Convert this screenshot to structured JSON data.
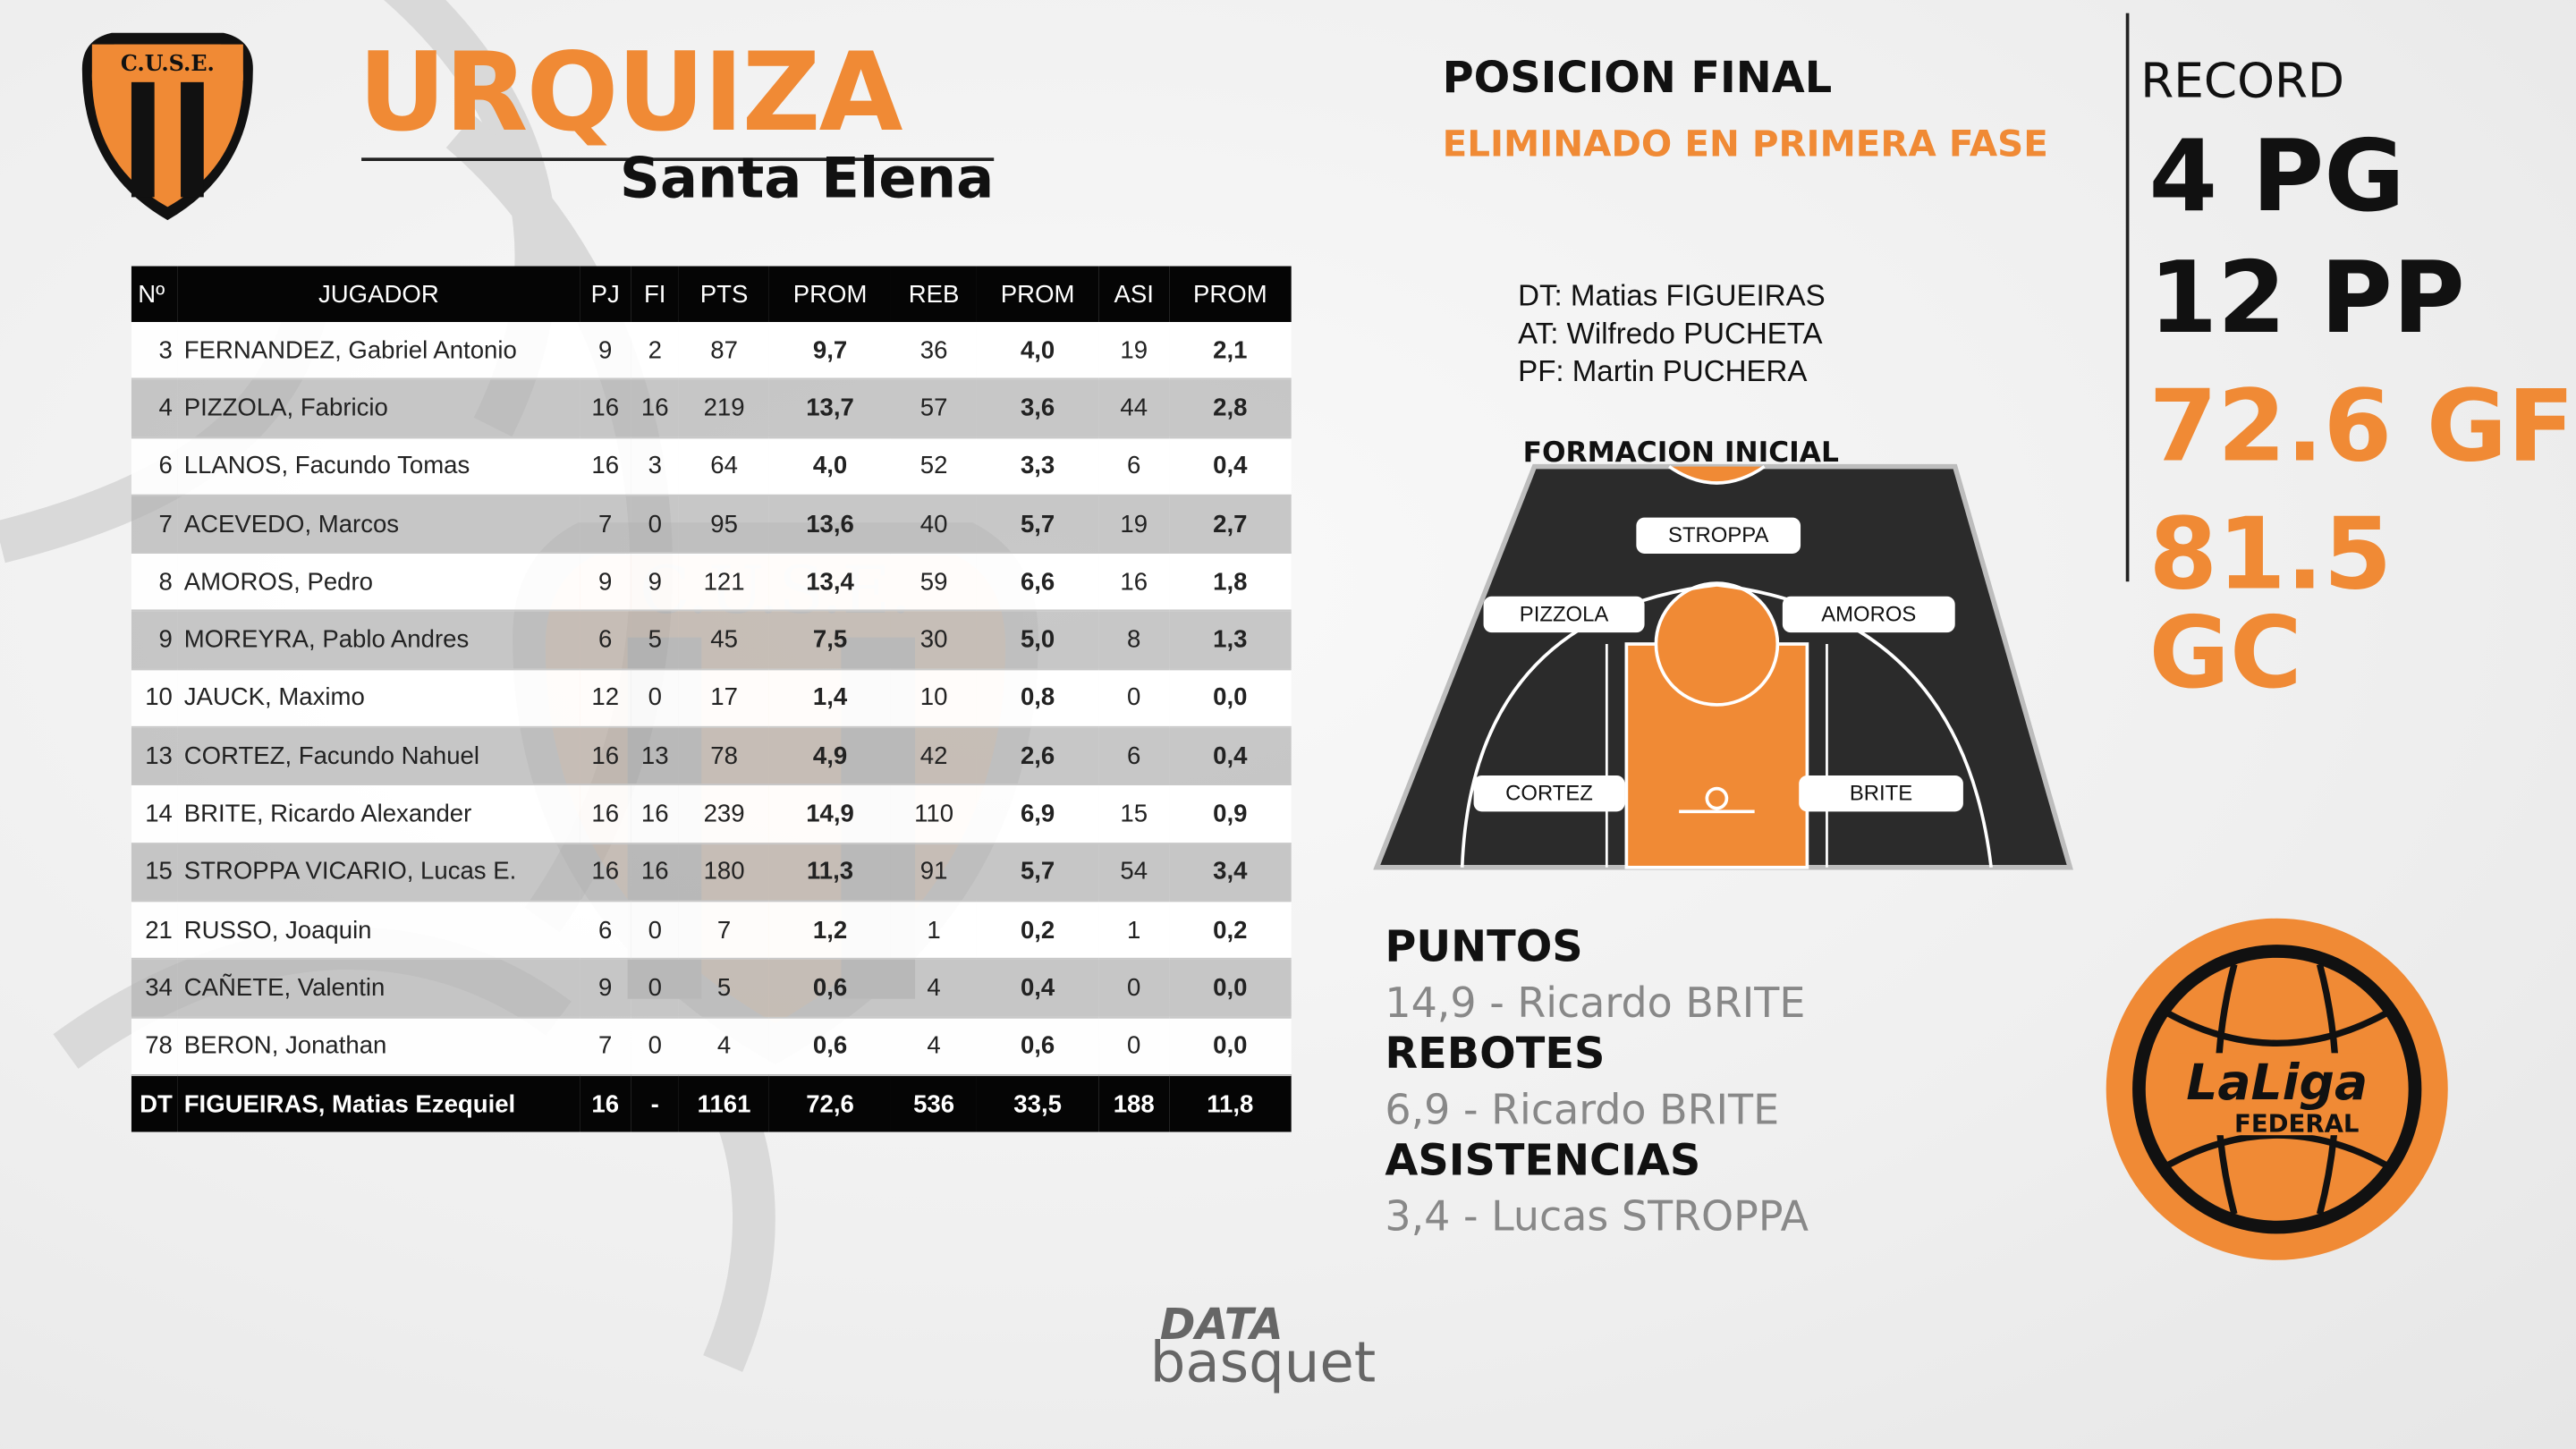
{
  "team": {
    "name": "URQUIZA",
    "city": "Santa Elena",
    "crest_text": "C.U.S.E."
  },
  "table": {
    "headers": [
      "Nº",
      "JUGADOR",
      "PJ",
      "FI",
      "PTS",
      "PROM",
      "REB",
      "PROM",
      "ASI",
      "PROM"
    ],
    "rows": [
      [
        "3",
        "FERNANDEZ, Gabriel Antonio",
        "9",
        "2",
        "87",
        "9,7",
        "36",
        "4,0",
        "19",
        "2,1"
      ],
      [
        "4",
        "PIZZOLA, Fabricio",
        "16",
        "16",
        "219",
        "13,7",
        "57",
        "3,6",
        "44",
        "2,8"
      ],
      [
        "6",
        "LLANOS, Facundo Tomas",
        "16",
        "3",
        "64",
        "4,0",
        "52",
        "3,3",
        "6",
        "0,4"
      ],
      [
        "7",
        "ACEVEDO, Marcos",
        "7",
        "0",
        "95",
        "13,6",
        "40",
        "5,7",
        "19",
        "2,7"
      ],
      [
        "8",
        "AMOROS, Pedro",
        "9",
        "9",
        "121",
        "13,4",
        "59",
        "6,6",
        "16",
        "1,8"
      ],
      [
        "9",
        "MOREYRA, Pablo Andres",
        "6",
        "5",
        "45",
        "7,5",
        "30",
        "5,0",
        "8",
        "1,3"
      ],
      [
        "10",
        "JAUCK, Maximo",
        "12",
        "0",
        "17",
        "1,4",
        "10",
        "0,8",
        "0",
        "0,0"
      ],
      [
        "13",
        "CORTEZ, Facundo Nahuel",
        "16",
        "13",
        "78",
        "4,9",
        "42",
        "2,6",
        "6",
        "0,4"
      ],
      [
        "14",
        "BRITE, Ricardo Alexander",
        "16",
        "16",
        "239",
        "14,9",
        "110",
        "6,9",
        "15",
        "0,9"
      ],
      [
        "15",
        "STROPPA VICARIO, Lucas E.",
        "16",
        "16",
        "180",
        "11,3",
        "91",
        "5,7",
        "54",
        "3,4"
      ],
      [
        "21",
        "RUSSO, Joaquin",
        "6",
        "0",
        "7",
        "1,2",
        "1",
        "0,2",
        "1",
        "0,2"
      ],
      [
        "34",
        "CAÑETE, Valentin",
        "9",
        "0",
        "5",
        "0,6",
        "4",
        "0,4",
        "0",
        "0,0"
      ],
      [
        "78",
        "BERON, Jonathan",
        "7",
        "0",
        "4",
        "0,6",
        "4",
        "0,6",
        "0",
        "0,0"
      ]
    ],
    "total": [
      "DT",
      "FIGUEIRAS, Matias Ezequiel",
      "16",
      "-",
      "1161",
      "72,6",
      "536",
      "33,5",
      "188",
      "11,8"
    ]
  },
  "final_position": {
    "title": "POSICION FINAL",
    "value": "ELIMINADO EN PRIMERA FASE"
  },
  "record": {
    "label": "RECORD",
    "won": "4 PG",
    "lost": "12 PP",
    "gf": "72.6 GF",
    "gc": "81.5 GC"
  },
  "staff": [
    "DT: Matias FIGUEIRAS",
    "AT: Wilfredo PUCHETA",
    "PF: Martin PUCHERA"
  ],
  "formation": {
    "title": "FORMACION INICIAL",
    "players": {
      "top": "STROPPA",
      "left": "PIZZOLA",
      "right": "AMOROS",
      "bottom_left": "CORTEZ",
      "bottom_right": "BRITE"
    }
  },
  "leaders": [
    {
      "category": "PUNTOS",
      "value": "14,9 - Ricardo BRITE"
    },
    {
      "category": "REBOTES",
      "value": "6,9 - Ricardo BRITE"
    },
    {
      "category": "ASISTENCIAS",
      "value": "3,4 - Lucas STROPPA"
    }
  ],
  "league_logo": {
    "line1": "LaLiga",
    "line2": "FEDERAL"
  },
  "brand": {
    "line1": "DATA",
    "line2": "basquet"
  },
  "colors": {
    "accent": "#f08a35",
    "dark": "#111111",
    "court": "#2b2b2b"
  }
}
